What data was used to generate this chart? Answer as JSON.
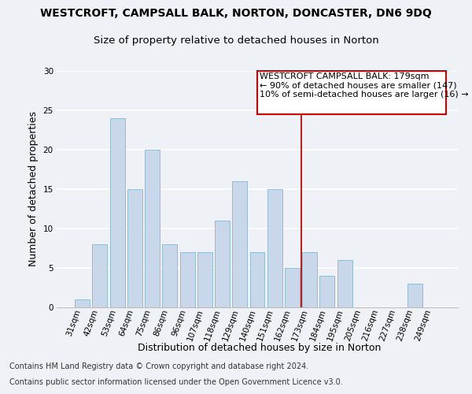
{
  "title": "WESTCROFT, CAMPSALL BALK, NORTON, DONCASTER, DN6 9DQ",
  "subtitle": "Size of property relative to detached houses in Norton",
  "xlabel": "Distribution of detached houses by size in Norton",
  "ylabel": "Number of detached properties",
  "footnote1": "Contains HM Land Registry data © Crown copyright and database right 2024.",
  "footnote2": "Contains public sector information licensed under the Open Government Licence v3.0.",
  "categories": [
    "31sqm",
    "42sqm",
    "53sqm",
    "64sqm",
    "75sqm",
    "86sqm",
    "96sqm",
    "107sqm",
    "118sqm",
    "129sqm",
    "140sqm",
    "151sqm",
    "162sqm",
    "173sqm",
    "184sqm",
    "195sqm",
    "205sqm",
    "216sqm",
    "227sqm",
    "238sqm",
    "249sqm"
  ],
  "values": [
    1,
    8,
    24,
    15,
    20,
    8,
    7,
    7,
    11,
    16,
    7,
    15,
    5,
    7,
    4,
    6,
    0,
    0,
    0,
    3,
    0
  ],
  "bar_color": "#c8d8ea",
  "bar_edge_color": "#8ab4cc",
  "annotation_box_color": "#cc0000",
  "annotation_line1": "WESTCROFT CAMPSALL BALK: 179sqm",
  "annotation_line2": "← 90% of detached houses are smaller (147)",
  "annotation_line3": "10% of semi-detached houses are larger (16) →",
  "vline_color": "#cc0000",
  "vline_x_index": 13,
  "ylim": [
    0,
    30
  ],
  "yticks": [
    0,
    5,
    10,
    15,
    20,
    25,
    30
  ],
  "background_color": "#eef2f6",
  "grid_color": "#ffffff",
  "title_fontsize": 10,
  "subtitle_fontsize": 9.5,
  "axis_label_fontsize": 9,
  "tick_fontsize": 7.5,
  "annotation_fontsize": 8,
  "footnote_fontsize": 7
}
